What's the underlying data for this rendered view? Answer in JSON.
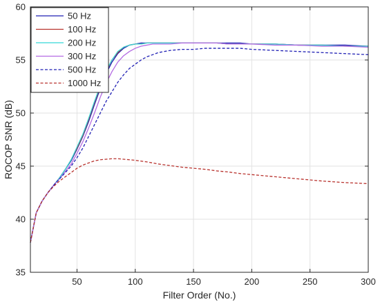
{
  "chart_data": {
    "type": "line",
    "title": "",
    "xlabel": "Filter Order (No.)",
    "ylabel": "ROCOP SNR (dB)",
    "xlim": [
      10,
      300
    ],
    "ylim": [
      35,
      60
    ],
    "xticks": [
      50,
      100,
      150,
      200,
      250,
      300
    ],
    "yticks": [
      35,
      40,
      45,
      50,
      55,
      60
    ],
    "grid": true,
    "legend_position": "top-left",
    "series": [
      {
        "name": "50 Hz",
        "color": "#1f1fb4",
        "dash": "solid",
        "x": [
          10,
          15,
          20,
          25,
          30,
          35,
          40,
          45,
          50,
          55,
          60,
          65,
          70,
          75,
          80,
          85,
          90,
          95,
          100,
          105,
          110,
          115,
          120,
          130,
          140,
          150,
          160,
          170,
          180,
          190,
          200,
          220,
          240,
          260,
          280,
          300
        ],
        "y": [
          37.8,
          40.6,
          41.7,
          42.5,
          43.2,
          43.9,
          44.7,
          45.5,
          46.6,
          47.8,
          49.2,
          50.8,
          52.3,
          53.7,
          54.8,
          55.6,
          56.1,
          56.4,
          56.5,
          56.6,
          56.6,
          56.6,
          56.6,
          56.6,
          56.6,
          56.6,
          56.6,
          56.6,
          56.6,
          56.6,
          56.5,
          56.5,
          56.4,
          56.4,
          56.4,
          56.3
        ]
      },
      {
        "name": "100 Hz",
        "color": "#b8312c",
        "dash": "solid",
        "x": [
          10,
          15,
          20,
          25,
          30,
          35,
          40,
          45,
          50,
          55,
          60,
          65,
          70,
          75,
          80,
          85,
          90,
          95,
          100,
          105,
          110,
          115,
          120,
          130,
          140,
          150,
          160,
          170,
          180,
          190,
          200,
          220,
          240,
          260,
          280,
          300
        ],
        "y": [
          37.8,
          40.6,
          41.7,
          42.5,
          43.2,
          43.9,
          44.7,
          45.6,
          46.7,
          47.9,
          49.4,
          51.0,
          52.5,
          53.9,
          55.0,
          55.7,
          56.2,
          56.4,
          56.5,
          56.5,
          56.6,
          56.6,
          56.6,
          56.6,
          56.6,
          56.6,
          56.6,
          56.6,
          56.5,
          56.5,
          56.5,
          56.5,
          56.4,
          56.4,
          56.3,
          56.3
        ]
      },
      {
        "name": "200 Hz",
        "color": "#33d6d6",
        "dash": "solid",
        "x": [
          10,
          15,
          20,
          25,
          30,
          35,
          40,
          45,
          50,
          55,
          60,
          65,
          70,
          75,
          80,
          85,
          90,
          95,
          100,
          105,
          110,
          115,
          120,
          130,
          140,
          150,
          160,
          170,
          180,
          190,
          200,
          220,
          240,
          260,
          280,
          300
        ],
        "y": [
          37.8,
          40.6,
          41.7,
          42.5,
          43.2,
          43.9,
          44.7,
          45.6,
          46.8,
          48.0,
          49.5,
          51.1,
          52.6,
          54.0,
          55.0,
          55.8,
          56.2,
          56.4,
          56.5,
          56.5,
          56.6,
          56.6,
          56.6,
          56.6,
          56.6,
          56.6,
          56.6,
          56.6,
          56.5,
          56.5,
          56.5,
          56.5,
          56.4,
          56.4,
          56.3,
          56.3
        ]
      },
      {
        "name": "300 Hz",
        "color": "#b36ae2",
        "dash": "solid",
        "x": [
          10,
          15,
          20,
          25,
          30,
          35,
          40,
          45,
          50,
          55,
          60,
          65,
          70,
          75,
          80,
          85,
          90,
          95,
          100,
          105,
          110,
          115,
          120,
          130,
          140,
          150,
          160,
          170,
          180,
          190,
          200,
          220,
          240,
          260,
          280,
          300
        ],
        "y": [
          37.8,
          40.6,
          41.7,
          42.5,
          43.2,
          43.8,
          44.5,
          45.2,
          46.2,
          47.3,
          48.6,
          50.0,
          51.5,
          52.8,
          53.9,
          54.8,
          55.4,
          55.8,
          56.1,
          56.3,
          56.4,
          56.5,
          56.5,
          56.5,
          56.6,
          56.6,
          56.6,
          56.6,
          56.5,
          56.5,
          56.5,
          56.4,
          56.4,
          56.3,
          56.3,
          56.2
        ]
      },
      {
        "name": "500 Hz",
        "color": "#1f1fb4",
        "dash": "dashed",
        "x": [
          10,
          15,
          20,
          25,
          30,
          35,
          40,
          45,
          50,
          55,
          60,
          65,
          70,
          75,
          80,
          85,
          90,
          95,
          100,
          105,
          110,
          115,
          120,
          130,
          140,
          150,
          160,
          170,
          180,
          190,
          200,
          220,
          240,
          260,
          280,
          300
        ],
        "y": [
          37.8,
          40.6,
          41.7,
          42.5,
          43.2,
          43.8,
          44.4,
          45.0,
          45.8,
          46.7,
          47.8,
          48.9,
          50.0,
          51.1,
          52.0,
          52.9,
          53.6,
          54.2,
          54.6,
          55.0,
          55.3,
          55.5,
          55.7,
          55.9,
          56.0,
          56.0,
          56.1,
          56.1,
          56.1,
          56.1,
          56.0,
          55.9,
          55.8,
          55.7,
          55.6,
          55.5
        ]
      },
      {
        "name": "1000 Hz",
        "color": "#b8312c",
        "dash": "dashed",
        "x": [
          10,
          15,
          20,
          25,
          30,
          35,
          40,
          45,
          50,
          55,
          60,
          65,
          70,
          75,
          80,
          85,
          90,
          95,
          100,
          110,
          120,
          130,
          140,
          150,
          160,
          170,
          180,
          190,
          200,
          220,
          240,
          260,
          280,
          300
        ],
        "y": [
          37.8,
          40.6,
          41.7,
          42.5,
          43.1,
          43.6,
          44.0,
          44.4,
          44.8,
          45.1,
          45.3,
          45.5,
          45.6,
          45.65,
          45.7,
          45.7,
          45.65,
          45.6,
          45.55,
          45.4,
          45.2,
          45.05,
          44.9,
          44.8,
          44.7,
          44.55,
          44.45,
          44.3,
          44.2,
          44.0,
          43.8,
          43.6,
          43.45,
          43.35
        ]
      }
    ]
  }
}
